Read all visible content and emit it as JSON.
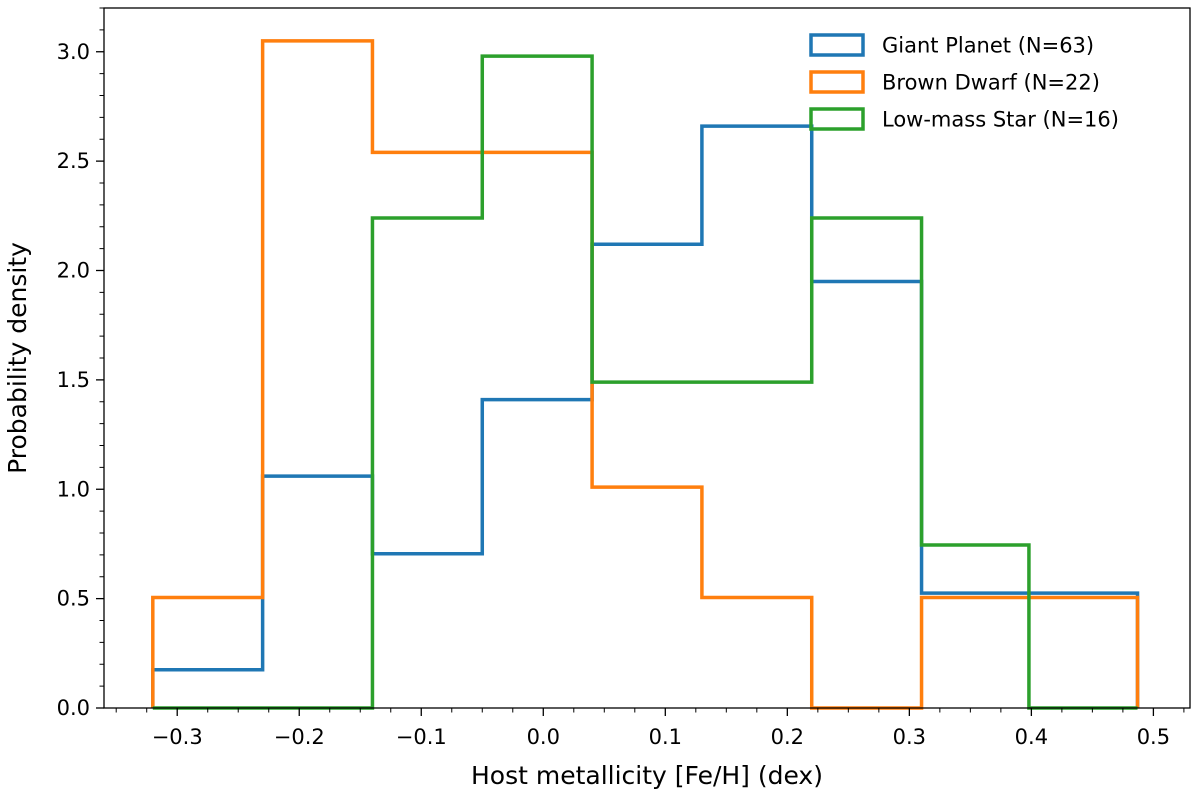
{
  "chart_data": {
    "type": "histogram",
    "xlabel": "Host metallicity [Fe/H] (dex)",
    "ylabel": "Probability density",
    "xlim": [
      -0.36,
      0.53
    ],
    "ylim": [
      0,
      3.2
    ],
    "xticks": [
      -0.3,
      -0.2,
      -0.1,
      0.0,
      0.1,
      0.2,
      0.3,
      0.4,
      0.5
    ],
    "xtick_labels": [
      "−0.3",
      "−0.2",
      "−0.1",
      "0.0",
      "0.1",
      "0.2",
      "0.3",
      "0.4",
      "0.5"
    ],
    "yticks": [
      0.0,
      0.5,
      1.0,
      1.5,
      2.0,
      2.5,
      3.0
    ],
    "ytick_labels": [
      "0.0",
      "0.5",
      "1.0",
      "1.5",
      "2.0",
      "2.5",
      "3.0"
    ],
    "bin_edges": [
      -0.32,
      -0.23,
      -0.14,
      -0.05,
      0.04,
      0.13,
      0.22,
      0.31,
      0.398,
      0.487
    ],
    "legend_position": "top-right",
    "grid": false,
    "series": [
      {
        "name": "Giant Planet (N=63)",
        "color": "#1f77b4",
        "values": [
          0.175,
          1.06,
          0.705,
          1.41,
          2.12,
          2.66,
          1.95,
          0.525,
          0.525
        ]
      },
      {
        "name": "Brown Dwarf (N=22)",
        "color": "#ff7f0e",
        "values": [
          0.505,
          3.05,
          2.54,
          2.54,
          1.01,
          0.505,
          0.0,
          0.505,
          0.505
        ]
      },
      {
        "name": "Low-mass Star (N=16)",
        "color": "#2ca02c",
        "values": [
          0.0,
          0.0,
          2.24,
          2.98,
          1.49,
          1.49,
          2.24,
          0.745,
          0.0
        ]
      }
    ]
  }
}
